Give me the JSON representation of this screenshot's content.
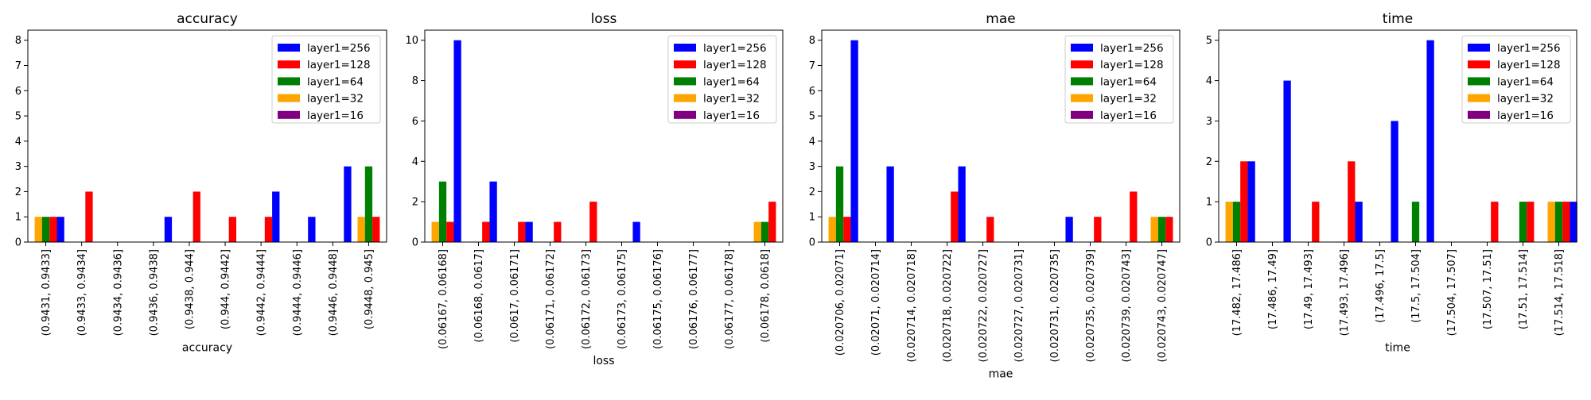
{
  "colors": {
    "layer1=256": "#0000ff",
    "layer1=128": "#ff0000",
    "layer1=64": "#008000",
    "layer1=32": "#ffa500",
    "layer1=16": "#800080"
  },
  "legend_placement": "top-right",
  "chart_data": [
    {
      "type": "bar",
      "title": "accuracy",
      "xlabel": "accuracy",
      "ylabel": "",
      "ylim": [
        0,
        8.4
      ],
      "yticks": [
        0,
        1,
        2,
        3,
        4,
        5,
        6,
        7,
        8
      ],
      "categories": [
        "(0.9431, 0.9433]",
        "(0.9433, 0.9434]",
        "(0.9434, 0.9436]",
        "(0.9436, 0.9438]",
        "(0.9438, 0.944]",
        "(0.944, 0.9442]",
        "(0.9442, 0.9444]",
        "(0.9444, 0.9446]",
        "(0.9446, 0.9448]",
        "(0.9448, 0.945]"
      ],
      "series": [
        {
          "name": "layer1=256",
          "values": [
            1,
            0,
            0,
            1,
            0,
            0,
            2,
            1,
            3,
            0
          ]
        },
        {
          "name": "layer1=128",
          "values": [
            1,
            2,
            0,
            0,
            2,
            1,
            1,
            0,
            0,
            1
          ]
        },
        {
          "name": "layer1=64",
          "values": [
            1,
            0,
            0,
            0,
            0,
            0,
            0,
            0,
            0,
            3
          ]
        },
        {
          "name": "layer1=32",
          "values": [
            1,
            0,
            0,
            0,
            0,
            0,
            0,
            0,
            0,
            1
          ]
        },
        {
          "name": "layer1=16",
          "values": [
            0,
            0,
            0,
            1,
            0,
            0,
            0,
            0,
            0,
            0
          ]
        }
      ]
    },
    {
      "type": "bar",
      "title": "loss",
      "xlabel": "loss",
      "ylabel": "",
      "ylim": [
        0,
        10.5
      ],
      "yticks": [
        0,
        2,
        4,
        6,
        8,
        10
      ],
      "categories": [
        "(0.06167, 0.06168]",
        "(0.06168, 0.0617]",
        "(0.0617, 0.06171]",
        "(0.06171, 0.06172]",
        "(0.06172, 0.06173]",
        "(0.06173, 0.06175]",
        "(0.06175, 0.06176]",
        "(0.06176, 0.06177]",
        "(0.06177, 0.06178]",
        "(0.06178, 0.0618]"
      ],
      "series": [
        {
          "name": "layer1=256",
          "values": [
            10,
            3,
            1,
            0,
            0,
            1,
            0,
            0,
            0,
            0
          ]
        },
        {
          "name": "layer1=128",
          "values": [
            1,
            1,
            1,
            1,
            2,
            0,
            0,
            0,
            0,
            2
          ]
        },
        {
          "name": "layer1=64",
          "values": [
            3,
            0,
            0,
            0,
            0,
            0,
            0,
            0,
            0,
            1
          ]
        },
        {
          "name": "layer1=32",
          "values": [
            1,
            0,
            0,
            0,
            0,
            0,
            0,
            0,
            0,
            1
          ]
        },
        {
          "name": "layer1=16",
          "values": [
            0,
            0,
            0,
            1,
            0,
            0,
            0,
            0,
            0,
            0
          ]
        }
      ]
    },
    {
      "type": "bar",
      "title": "mae",
      "xlabel": "mae",
      "ylabel": "",
      "ylim": [
        0,
        8.4
      ],
      "yticks": [
        0,
        1,
        2,
        3,
        4,
        5,
        6,
        7,
        8
      ],
      "categories": [
        "(0.020706, 0.02071]",
        "(0.02071, 0.020714]",
        "(0.020714, 0.020718]",
        "(0.020718, 0.020722]",
        "(0.020722, 0.020727]",
        "(0.020727, 0.020731]",
        "(0.020731, 0.020735]",
        "(0.020735, 0.020739]",
        "(0.020739, 0.020743]",
        "(0.020743, 0.020747]"
      ],
      "series": [
        {
          "name": "layer1=256",
          "values": [
            8,
            3,
            0,
            3,
            0,
            0,
            1,
            0,
            0,
            0
          ]
        },
        {
          "name": "layer1=128",
          "values": [
            1,
            0,
            0,
            2,
            1,
            0,
            0,
            1,
            2,
            1
          ]
        },
        {
          "name": "layer1=64",
          "values": [
            3,
            0,
            0,
            0,
            0,
            0,
            0,
            0,
            0,
            1
          ]
        },
        {
          "name": "layer1=32",
          "values": [
            1,
            0,
            0,
            0,
            0,
            0,
            0,
            0,
            0,
            1
          ]
        },
        {
          "name": "layer1=16",
          "values": [
            0,
            0,
            0,
            1,
            0,
            0,
            0,
            0,
            0,
            0
          ]
        }
      ]
    },
    {
      "type": "bar",
      "title": "time",
      "xlabel": "time",
      "ylabel": "",
      "ylim": [
        0,
        5.25
      ],
      "yticks": [
        0,
        1,
        2,
        3,
        4,
        5
      ],
      "categories": [
        "(17.482, 17.486]",
        "(17.486, 17.49]",
        "(17.49, 17.493]",
        "(17.493, 17.496]",
        "(17.496, 17.5]",
        "(17.5, 17.504]",
        "(17.504, 17.507]",
        "(17.507, 17.51]",
        "(17.51, 17.514]",
        "(17.514, 17.518]"
      ],
      "series": [
        {
          "name": "layer1=256",
          "values": [
            2,
            4,
            0,
            1,
            3,
            5,
            0,
            0,
            0,
            1
          ]
        },
        {
          "name": "layer1=128",
          "values": [
            2,
            0,
            1,
            2,
            0,
            0,
            0,
            1,
            1,
            1
          ]
        },
        {
          "name": "layer1=64",
          "values": [
            1,
            0,
            0,
            0,
            0,
            1,
            0,
            0,
            1,
            1
          ]
        },
        {
          "name": "layer1=32",
          "values": [
            1,
            0,
            0,
            0,
            0,
            0,
            0,
            0,
            0,
            1
          ]
        },
        {
          "name": "layer1=16",
          "values": [
            0,
            0,
            0,
            1,
            0,
            0,
            0,
            0,
            0,
            0
          ]
        }
      ]
    }
  ]
}
